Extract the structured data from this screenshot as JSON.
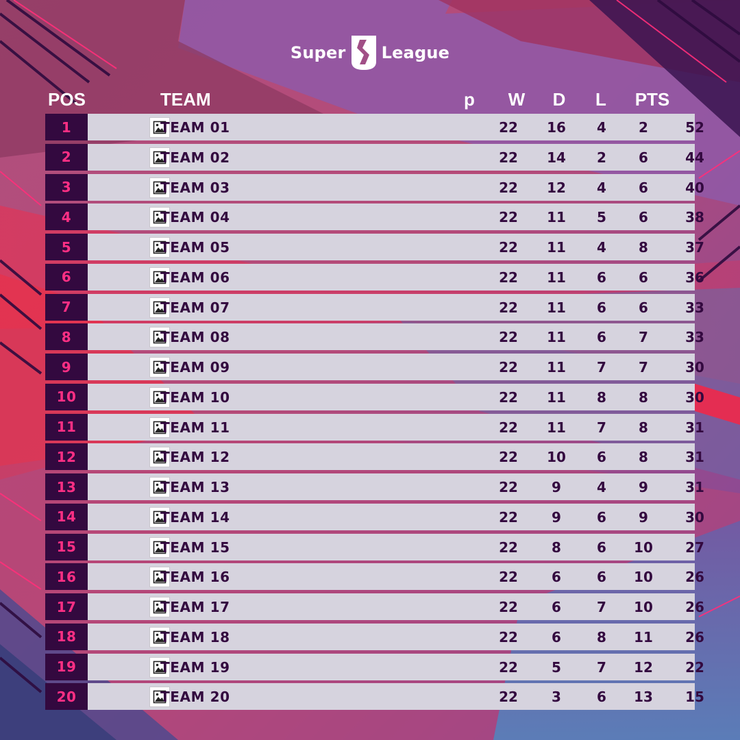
{
  "brand": {
    "word_left": "Super",
    "word_right": "League",
    "mark_icon": "league-shield-icon"
  },
  "header": {
    "pos": "POS",
    "team": "TEAM",
    "p": "p",
    "w": "W",
    "d": "D",
    "l": "L",
    "pts": "PTS"
  },
  "colors": {
    "pos_bg": "#33093f",
    "pos_text": "#ff2f84",
    "row_bg": "#d6d3de",
    "row_text": "#33093f",
    "header_text": "#ffffff"
  },
  "rows": [
    {
      "pos": "1",
      "team": "TEAM 01",
      "p": "22",
      "w": "16",
      "d": "4",
      "l": "2",
      "pts": "52"
    },
    {
      "pos": "2",
      "team": "TEAM 02",
      "p": "22",
      "w": "14",
      "d": "2",
      "l": "6",
      "pts": "44"
    },
    {
      "pos": "3",
      "team": "TEAM 03",
      "p": "22",
      "w": "12",
      "d": "4",
      "l": "6",
      "pts": "40"
    },
    {
      "pos": "4",
      "team": "TEAM 04",
      "p": "22",
      "w": "11",
      "d": "5",
      "l": "6",
      "pts": "38"
    },
    {
      "pos": "5",
      "team": "TEAM 05",
      "p": "22",
      "w": "11",
      "d": "4",
      "l": "8",
      "pts": "37"
    },
    {
      "pos": "6",
      "team": "TEAM 06",
      "p": "22",
      "w": "11",
      "d": "6",
      "l": "6",
      "pts": "36"
    },
    {
      "pos": "7",
      "team": "TEAM 07",
      "p": "22",
      "w": "11",
      "d": "6",
      "l": "6",
      "pts": "33"
    },
    {
      "pos": "8",
      "team": "TEAM 08",
      "p": "22",
      "w": "11",
      "d": "6",
      "l": "7",
      "pts": "33"
    },
    {
      "pos": "9",
      "team": "TEAM 09",
      "p": "22",
      "w": "11",
      "d": "7",
      "l": "7",
      "pts": "30"
    },
    {
      "pos": "10",
      "team": "TEAM 10",
      "p": "22",
      "w": "11",
      "d": "8",
      "l": "8",
      "pts": "30"
    },
    {
      "pos": "11",
      "team": "TEAM 11",
      "p": "22",
      "w": "11",
      "d": "7",
      "l": "8",
      "pts": "31"
    },
    {
      "pos": "12",
      "team": "TEAM 12",
      "p": "22",
      "w": "10",
      "d": "6",
      "l": "8",
      "pts": "31"
    },
    {
      "pos": "13",
      "team": "TEAM 13",
      "p": "22",
      "w": "9",
      "d": "4",
      "l": "9",
      "pts": "31"
    },
    {
      "pos": "14",
      "team": "TEAM 14",
      "p": "22",
      "w": "9",
      "d": "6",
      "l": "9",
      "pts": "30"
    },
    {
      "pos": "15",
      "team": "TEAM 15",
      "p": "22",
      "w": "8",
      "d": "6",
      "l": "10",
      "pts": "27"
    },
    {
      "pos": "16",
      "team": "TEAM 16",
      "p": "22",
      "w": "6",
      "d": "6",
      "l": "10",
      "pts": "26"
    },
    {
      "pos": "17",
      "team": "TEAM 17",
      "p": "22",
      "w": "6",
      "d": "7",
      "l": "10",
      "pts": "26"
    },
    {
      "pos": "18",
      "team": "TEAM 18",
      "p": "22",
      "w": "6",
      "d": "8",
      "l": "11",
      "pts": "26"
    },
    {
      "pos": "19",
      "team": "TEAM 19",
      "p": "22",
      "w": "5",
      "d": "7",
      "l": "12",
      "pts": "22"
    },
    {
      "pos": "20",
      "team": "TEAM 20",
      "p": "22",
      "w": "3",
      "d": "6",
      "l": "13",
      "pts": "15"
    }
  ]
}
